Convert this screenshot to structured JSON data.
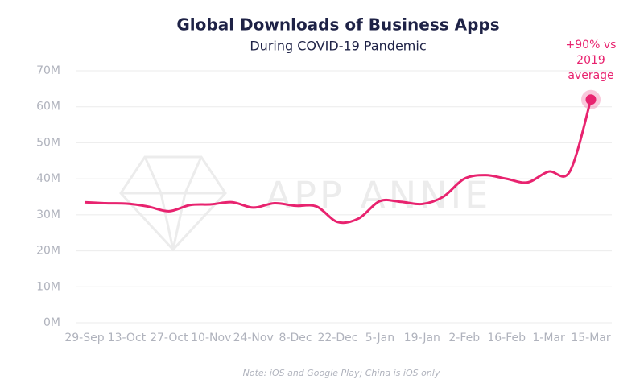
{
  "chart_data": {
    "type": "line",
    "title": "Global Downloads of Business Apps",
    "subtitle": "During COVID-19 Pandemic",
    "watermark": "APP ANNIE",
    "note": "Note: iOS and Google Play; China is iOS only",
    "annotation": [
      "+90% vs",
      "2019",
      "average"
    ],
    "categories": [
      "29-Sep",
      null,
      "13-Oct",
      null,
      "27-Oct",
      null,
      "10-Nov",
      null,
      "24-Nov",
      null,
      "8-Dec",
      null,
      "22-Dec",
      null,
      "5-Jan",
      null,
      "19-Jan",
      null,
      "2-Feb",
      null,
      "16-Feb",
      null,
      "1-Mar",
      null,
      "15-Mar"
    ],
    "series": [
      {
        "name": "Global Downloads of Business Apps",
        "color": "#e8236f",
        "values": [
          33.5,
          33.2,
          33.1,
          32.3,
          31.0,
          32.7,
          32.9,
          33.5,
          32.0,
          33.2,
          32.5,
          32.3,
          28.0,
          29.0,
          33.8,
          33.6,
          33.0,
          35.0,
          40.0,
          41.0,
          40.0,
          39.0,
          42.0,
          42.0,
          62.0
        ]
      }
    ],
    "ylim": [
      0,
      70
    ],
    "yticks": [
      {
        "value": 0,
        "label": "0M"
      },
      {
        "value": 10,
        "label": "10M"
      },
      {
        "value": 20,
        "label": "20M"
      },
      {
        "value": 30,
        "label": "30M"
      },
      {
        "value": 40,
        "label": "40M"
      },
      {
        "value": 50,
        "label": "50M"
      },
      {
        "value": 60,
        "label": "60M"
      },
      {
        "value": 70,
        "label": "70M"
      }
    ],
    "grid": true
  }
}
